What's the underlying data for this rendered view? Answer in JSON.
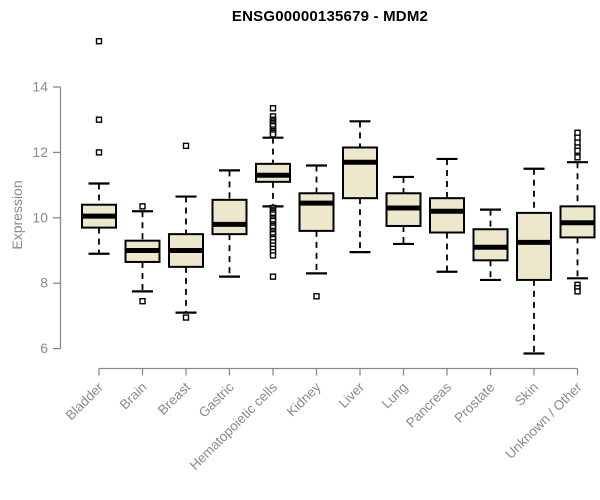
{
  "chart_data": {
    "type": "boxplot",
    "title": "ENSG00000135679 - MDM2",
    "ylabel": "Expression",
    "xlabel": "",
    "ylim": [
      6,
      14
    ],
    "yticks": [
      6,
      8,
      10,
      12,
      14
    ],
    "grid": false,
    "legend": "none",
    "categories": [
      "Bladder",
      "Brain",
      "Breast",
      "Gastric",
      "Hematopoietic cells",
      "Kidney",
      "Liver",
      "Lung",
      "Pancreas",
      "Prostate",
      "Skin",
      "Unknown / Other"
    ],
    "boxes": [
      {
        "name": "Bladder",
        "whisker_low": 8.9,
        "q1": 9.7,
        "median": 10.05,
        "q3": 10.4,
        "whisker_high": 11.05,
        "outliers": [
          15.4,
          13.0,
          12.0
        ]
      },
      {
        "name": "Brain",
        "whisker_low": 7.75,
        "q1": 8.65,
        "median": 9.0,
        "q3": 9.3,
        "whisker_high": 10.2,
        "outliers": [
          10.35,
          7.45
        ]
      },
      {
        "name": "Breast",
        "whisker_low": 7.1,
        "q1": 8.5,
        "median": 9.0,
        "q3": 9.5,
        "whisker_high": 10.65,
        "outliers": [
          12.2,
          6.95
        ]
      },
      {
        "name": "Gastric",
        "whisker_low": 8.2,
        "q1": 9.5,
        "median": 9.8,
        "q3": 10.55,
        "whisker_high": 11.45,
        "outliers": []
      },
      {
        "name": "Hematopoietic cells",
        "whisker_low": 10.35,
        "q1": 11.1,
        "median": 11.3,
        "q3": 11.65,
        "whisker_high": 12.45,
        "outliers": [
          13.35,
          13.1,
          13.0,
          12.95,
          12.9,
          12.85,
          12.8,
          12.7,
          12.65,
          12.6,
          12.55,
          10.3,
          10.25,
          10.2,
          10.15,
          10.1,
          10.0,
          9.95,
          9.9,
          9.8,
          9.75,
          9.7,
          9.6,
          9.55,
          9.5,
          9.4,
          9.35,
          9.25,
          9.15,
          9.05,
          8.95,
          8.85,
          8.2
        ]
      },
      {
        "name": "Kidney",
        "whisker_low": 8.3,
        "q1": 9.6,
        "median": 10.45,
        "q3": 10.75,
        "whisker_high": 11.6,
        "outliers": [
          7.6
        ]
      },
      {
        "name": "Liver",
        "whisker_low": 8.95,
        "q1": 10.6,
        "median": 11.7,
        "q3": 12.15,
        "whisker_high": 12.95,
        "outliers": []
      },
      {
        "name": "Lung",
        "whisker_low": 9.2,
        "q1": 9.75,
        "median": 10.3,
        "q3": 10.75,
        "whisker_high": 11.25,
        "outliers": []
      },
      {
        "name": "Pancreas",
        "whisker_low": 8.35,
        "q1": 9.55,
        "median": 10.2,
        "q3": 10.6,
        "whisker_high": 11.8,
        "outliers": []
      },
      {
        "name": "Prostate",
        "whisker_low": 8.1,
        "q1": 8.7,
        "median": 9.1,
        "q3": 9.65,
        "whisker_high": 10.25,
        "outliers": []
      },
      {
        "name": "Skin",
        "whisker_low": 5.85,
        "q1": 8.1,
        "median": 9.25,
        "q3": 10.15,
        "whisker_high": 11.5,
        "outliers": []
      },
      {
        "name": "Unknown / Other",
        "whisker_low": 8.15,
        "q1": 9.4,
        "median": 9.85,
        "q3": 10.35,
        "whisker_high": 11.7,
        "outliers": [
          12.6,
          12.45,
          12.3,
          12.15,
          12.05,
          11.85,
          7.95,
          7.85,
          7.75
        ]
      }
    ],
    "colors": {
      "box_fill": "#EDE8CB",
      "box_border": "#000000",
      "median": "#000000",
      "whisker": "#000000",
      "outlier": "#000000",
      "axis": "#8a8a8a",
      "tick_label": "#8a8a8a",
      "title": "#000000",
      "background": "#ffffff"
    }
  }
}
